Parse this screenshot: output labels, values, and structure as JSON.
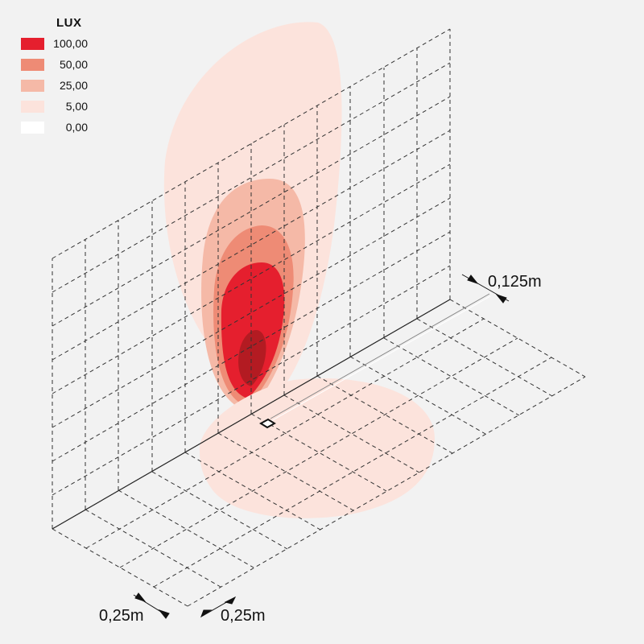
{
  "legend": {
    "title": "LUX",
    "items": [
      {
        "label": "100,00",
        "color": "#e51f2e"
      },
      {
        "label": "50,00",
        "color": "#ee8b75"
      },
      {
        "label": "25,00",
        "color": "#f5b9a7"
      },
      {
        "label": "5,00",
        "color": "#fce3dc"
      },
      {
        "label": "0,00",
        "color": "#ffffff"
      }
    ]
  },
  "dimensions": {
    "depth_spacing": "0,125m",
    "horizontal_spacing_left": "0,25m",
    "horizontal_spacing_right": "0,25m"
  },
  "colors": {
    "core": "#b31b22",
    "grid": "#333333"
  }
}
